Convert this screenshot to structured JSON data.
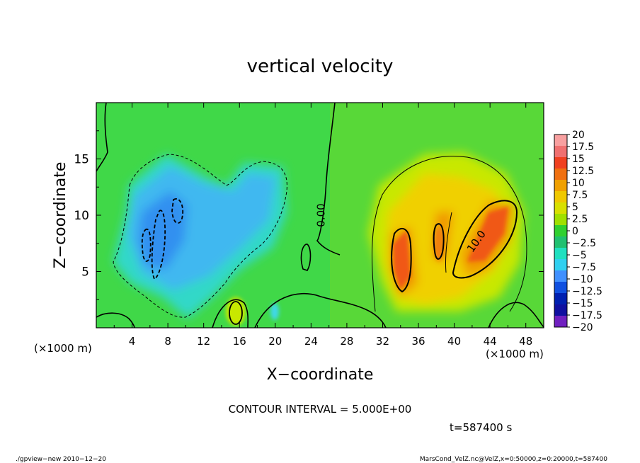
{
  "chart_data": {
    "type": "heatmap",
    "title": "vertical velocity",
    "xlabel": "X−coordinate",
    "ylabel": "Z−coordinate",
    "x_unit": "(×1000 m)",
    "y_unit": "(×1000 m)",
    "xlim": [
      0,
      50
    ],
    "ylim": [
      0,
      20
    ],
    "x_ticks": [
      4,
      8,
      12,
      16,
      20,
      24,
      28,
      32,
      36,
      40,
      44,
      48
    ],
    "y_ticks": [
      5,
      10,
      15
    ],
    "x_tick_labels": [
      "4",
      "8",
      "12",
      "16",
      "20",
      "24",
      "28",
      "32",
      "36",
      "40",
      "44",
      "48"
    ],
    "y_tick_labels": [
      "5",
      "10",
      "15"
    ],
    "contour_labels": [
      {
        "text": "0.00",
        "x": 25.5,
        "y": 10,
        "angle": -90
      },
      {
        "text": "10.0",
        "x": 42.8,
        "y": 7.5,
        "angle": -55
      }
    ],
    "contour_interval_text": "CONTOUR INTERVAL = 5.000E+00",
    "time_text": "t=587400  s",
    "colorbar": {
      "labels": [
        "20",
        "17.5",
        "15",
        "12.5",
        "10",
        "7.5",
        "5",
        "2.5",
        "0",
        "−2.5",
        "−5",
        "−7.5",
        "−10",
        "−12.5",
        "−15",
        "−17.5",
        "−20"
      ],
      "colors": [
        "#f8a0a0",
        "#f07070",
        "#f04020",
        "#f07010",
        "#f0a000",
        "#f0c800",
        "#d8e000",
        "#a0e000",
        "#30d030",
        "#20c070",
        "#20e0c0",
        "#30d0f0",
        "#4090ff",
        "#1050e0",
        "#0020b0",
        "#1010a0",
        "#7020c0"
      ]
    },
    "fields": {
      "background_value": 0,
      "features": [
        {
          "sign": "negative",
          "center_x": 9,
          "center_z": 9,
          "peak": -10
        },
        {
          "sign": "positive",
          "center_x": 33.8,
          "center_z": 6,
          "peak": 15
        },
        {
          "sign": "positive",
          "center_x": 38.5,
          "center_z": 7.5,
          "peak": 10
        },
        {
          "sign": "positive",
          "center_x": 43,
          "center_z": 8.5,
          "peak": 15
        },
        {
          "sign": "positive",
          "center_x": 15.5,
          "center_z": 1.2,
          "peak": 5
        }
      ]
    }
  },
  "footer": {
    "left": "./gpview−new  2010−12−20",
    "right": "MarsCond_VelZ.nc@VelZ,x=0:50000,z=0:20000,t=587400"
  }
}
